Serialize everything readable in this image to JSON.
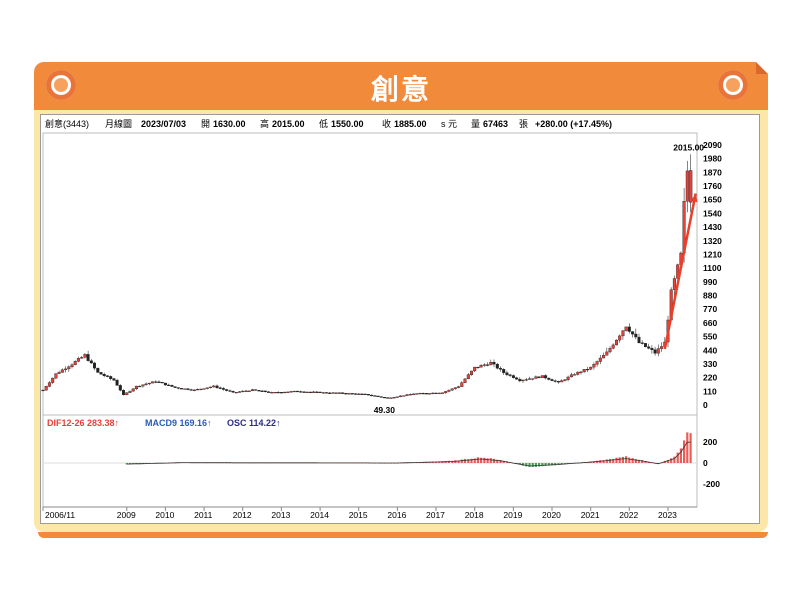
{
  "banner": {
    "title": "創意"
  },
  "header": {
    "stock": "創意(3443)",
    "period": "月線圖",
    "date": "2023/07/03",
    "open_label": "開",
    "open": "1630.00",
    "high_label": "高",
    "high": "2015.00",
    "low_label": "低",
    "low": "1550.00",
    "close_label": "收",
    "close": "1885.00",
    "currency": "s 元",
    "volume_label": "量",
    "volume": "67463",
    "volume_unit": "張",
    "change": "+280.00 (+17.45%)"
  },
  "indicator": {
    "dif_label": "DIF12-26 283.38↑",
    "macd_label": "MACD9 169.16↑",
    "osc_label": "OSC 114.22↑"
  },
  "colors": {
    "up": "#e8403a",
    "down": "#2e8b3a",
    "arrow": "#e8402a",
    "banner": "#f28a3c"
  },
  "chart_data": {
    "type": "candlestick",
    "ylim": [
      0,
      2090
    ],
    "y_ticks": [
      "2090",
      "1980",
      "1870",
      "1760",
      "1650",
      "1540",
      "1430",
      "1320",
      "1210",
      "1100",
      "990",
      "880",
      "770",
      "660",
      "550",
      "440",
      "330",
      "220",
      "110",
      "0"
    ],
    "macd_ticks": [
      "200",
      "0",
      "-200"
    ],
    "x_ticks": [
      "2006/11",
      "2009",
      "2010",
      "2011",
      "2012",
      "2013",
      "2014",
      "2015",
      "2016",
      "2017",
      "2018",
      "2019",
      "2020",
      "2021",
      "2022",
      "2023"
    ],
    "annotations": [
      {
        "text": "2015.00",
        "x": "2023-07",
        "y": 2015
      },
      {
        "text": "49.30",
        "x": "2015-10",
        "y": 49.3
      }
    ],
    "price_path": [
      [
        "2006-11",
        120
      ],
      [
        "2007-03",
        250
      ],
      [
        "2007-08",
        330
      ],
      [
        "2007-12",
        400
      ],
      [
        "2008-04",
        260
      ],
      [
        "2008-09",
        200
      ],
      [
        "2008-12",
        80
      ],
      [
        "2009-04",
        150
      ],
      [
        "2009-10",
        190
      ],
      [
        "2010-04",
        140
      ],
      [
        "2010-10",
        120
      ],
      [
        "2011-04",
        150
      ],
      [
        "2011-10",
        100
      ],
      [
        "2012-04",
        120
      ],
      [
        "2012-10",
        100
      ],
      [
        "2013-06",
        110
      ],
      [
        "2014-01",
        100
      ],
      [
        "2014-08",
        95
      ],
      [
        "2015-03",
        85
      ],
      [
        "2015-10",
        55
      ],
      [
        "2016-06",
        90
      ],
      [
        "2017-03",
        100
      ],
      [
        "2017-08",
        150
      ],
      [
        "2018-01",
        300
      ],
      [
        "2018-06",
        340
      ],
      [
        "2018-10",
        260
      ],
      [
        "2019-03",
        200
      ],
      [
        "2019-10",
        230
      ],
      [
        "2020-03",
        180
      ],
      [
        "2020-08",
        250
      ],
      [
        "2021-01",
        300
      ],
      [
        "2021-06",
        420
      ],
      [
        "2021-12",
        640
      ],
      [
        "2022-04",
        500
      ],
      [
        "2022-09",
        420
      ],
      [
        "2022-12",
        500
      ],
      [
        "2023-02",
        900
      ],
      [
        "2023-04",
        1100
      ],
      [
        "2023-05",
        1200
      ],
      [
        "2023-06",
        1605
      ],
      [
        "2023-07",
        1885
      ]
    ],
    "macd_osc_path": [
      [
        "2009-01",
        -15
      ],
      [
        "2010-06",
        5
      ],
      [
        "2012-01",
        3
      ],
      [
        "2014-01",
        2
      ],
      [
        "2016-01",
        0
      ],
      [
        "2017-06",
        20
      ],
      [
        "2018-03",
        55
      ],
      [
        "2018-09",
        30
      ],
      [
        "2019-06",
        -40
      ],
      [
        "2020-03",
        -20
      ],
      [
        "2021-03",
        20
      ],
      [
        "2021-12",
        60
      ],
      [
        "2022-06",
        20
      ],
      [
        "2022-10",
        -10
      ],
      [
        "2023-03",
        60
      ],
      [
        "2023-05",
        150
      ],
      [
        "2023-07",
        283
      ]
    ]
  }
}
